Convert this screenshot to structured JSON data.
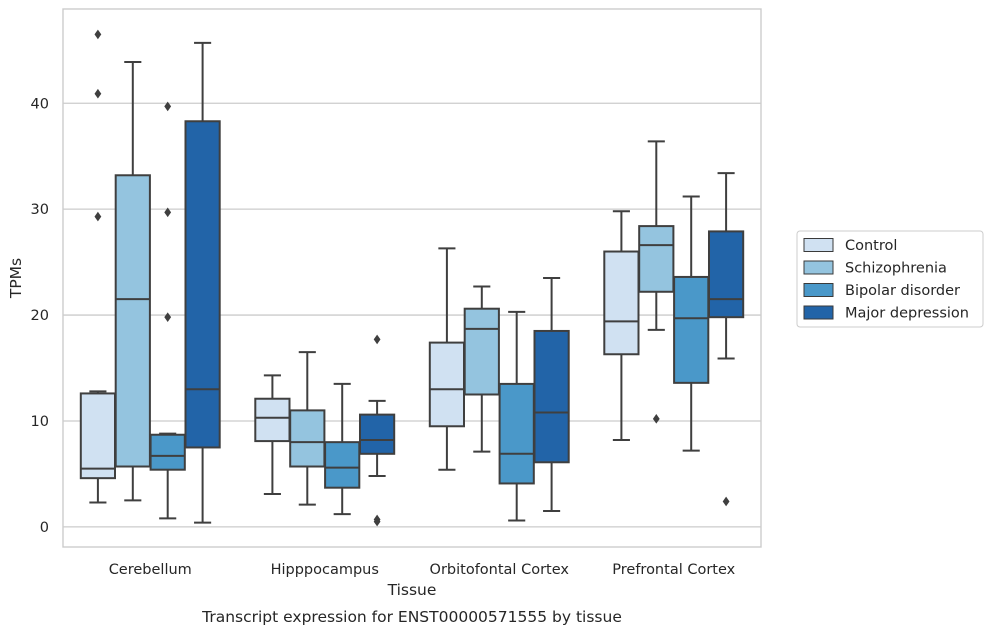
{
  "chart_data": {
    "type": "box",
    "xlabel": "Tissue",
    "ylabel": "TPMs",
    "caption": "Transcript expression for ENST00000571555 by tissue",
    "ylim": [
      -1.9,
      48.9
    ],
    "yticks": [
      0,
      10,
      20,
      30,
      40
    ],
    "grid": "y",
    "legend_position": "right",
    "categories": [
      "Cerebellum",
      "Hipppocampus",
      "Orbitofontal Cortex",
      "Prefrontal Cortex"
    ],
    "series": [
      {
        "name": "Control",
        "color": "#d0e1f2",
        "boxes": [
          {
            "whislo": 2.3,
            "q1": 4.6,
            "med": 5.5,
            "q3": 12.6,
            "whishi": 12.8,
            "fliers": [
              29.3,
              40.9,
              46.5
            ]
          },
          {
            "whislo": 3.1,
            "q1": 8.1,
            "med": 10.3,
            "q3": 12.1,
            "whishi": 14.3,
            "fliers": []
          },
          {
            "whislo": 5.4,
            "q1": 9.5,
            "med": 13.0,
            "q3": 17.4,
            "whishi": 26.3,
            "fliers": []
          },
          {
            "whislo": 8.2,
            "q1": 16.3,
            "med": 19.4,
            "q3": 26.0,
            "whishi": 29.8,
            "fliers": []
          }
        ]
      },
      {
        "name": "Schizophrenia",
        "color": "#94c4df",
        "boxes": [
          {
            "whislo": 2.5,
            "q1": 5.7,
            "med": 21.5,
            "q3": 33.2,
            "whishi": 43.9,
            "fliers": []
          },
          {
            "whislo": 2.1,
            "q1": 5.7,
            "med": 8.0,
            "q3": 11.0,
            "whishi": 16.5,
            "fliers": []
          },
          {
            "whislo": 7.1,
            "q1": 12.5,
            "med": 18.7,
            "q3": 20.6,
            "whishi": 22.7,
            "fliers": []
          },
          {
            "whislo": 18.6,
            "q1": 22.2,
            "med": 26.6,
            "q3": 28.4,
            "whishi": 36.4,
            "fliers": [
              10.2
            ]
          }
        ]
      },
      {
        "name": "Bipolar disorder",
        "color": "#4a98c9",
        "boxes": [
          {
            "whislo": 0.8,
            "q1": 5.4,
            "med": 6.7,
            "q3": 8.7,
            "whishi": 8.8,
            "fliers": [
              19.8,
              29.7,
              39.7
            ]
          },
          {
            "whislo": 1.2,
            "q1": 3.7,
            "med": 5.6,
            "q3": 8.0,
            "whishi": 13.5,
            "fliers": []
          },
          {
            "whislo": 0.6,
            "q1": 4.1,
            "med": 6.9,
            "q3": 13.5,
            "whishi": 20.3,
            "fliers": []
          },
          {
            "whislo": 7.2,
            "q1": 13.6,
            "med": 19.7,
            "q3": 23.6,
            "whishi": 31.2,
            "fliers": []
          }
        ]
      },
      {
        "name": "Major depression",
        "color": "#2264a8",
        "boxes": [
          {
            "whislo": 0.4,
            "q1": 7.5,
            "med": 13.0,
            "q3": 38.3,
            "whishi": 45.7,
            "fliers": []
          },
          {
            "whislo": 4.8,
            "q1": 6.9,
            "med": 8.2,
            "q3": 10.6,
            "whishi": 11.9,
            "fliers": [
              0.5,
              0.7,
              17.7
            ]
          },
          {
            "whislo": 1.5,
            "q1": 6.1,
            "med": 10.8,
            "q3": 18.5,
            "whishi": 23.5,
            "fliers": []
          },
          {
            "whislo": 15.9,
            "q1": 19.8,
            "med": 21.5,
            "q3": 27.9,
            "whishi": 33.4,
            "fliers": [
              2.4
            ]
          }
        ]
      }
    ]
  }
}
